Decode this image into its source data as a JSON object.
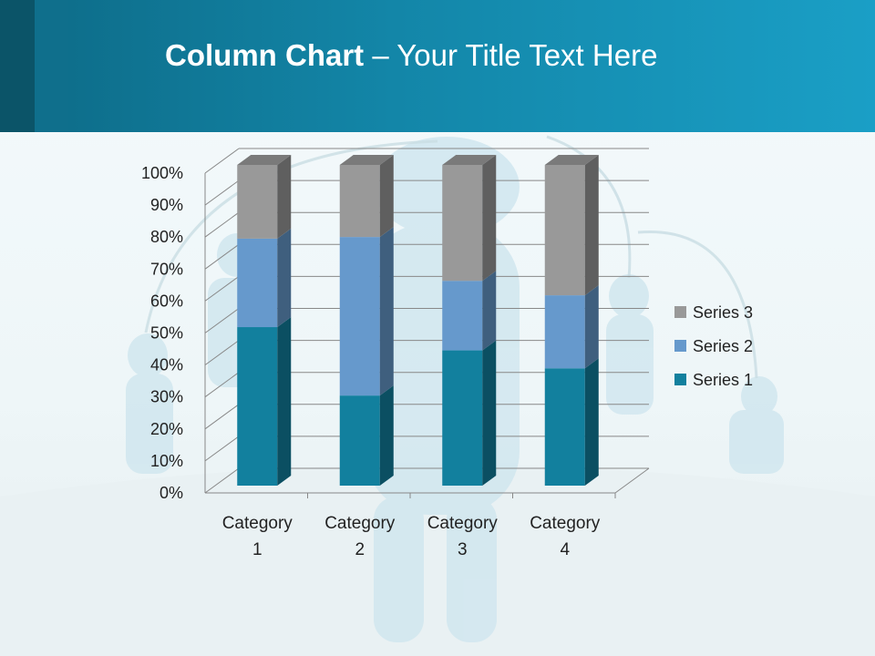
{
  "slide": {
    "title_bold": "Column Chart",
    "title_rest": " – Your Title Text Here"
  },
  "chart_data": {
    "type": "bar",
    "subtype": "3d-stacked-100-percent-column",
    "categories": [
      "Category 1",
      "Category 2",
      "Category 3",
      "Category 4"
    ],
    "series": [
      {
        "name": "Series 1",
        "values": [
          4.3,
          2.5,
          3.5,
          4.5
        ],
        "color": "#12809e"
      },
      {
        "name": "Series 2",
        "values": [
          2.4,
          4.4,
          1.8,
          2.8
        ],
        "color": "#6699cc"
      },
      {
        "name": "Series 3",
        "values": [
          2,
          2,
          3,
          5
        ],
        "color": "#999999"
      }
    ],
    "yticks": [
      "0%",
      "10%",
      "20%",
      "30%",
      "40%",
      "50%",
      "60%",
      "70%",
      "80%",
      "90%",
      "100%"
    ],
    "ylim": [
      0,
      100
    ],
    "grid": true,
    "legend": "right"
  }
}
